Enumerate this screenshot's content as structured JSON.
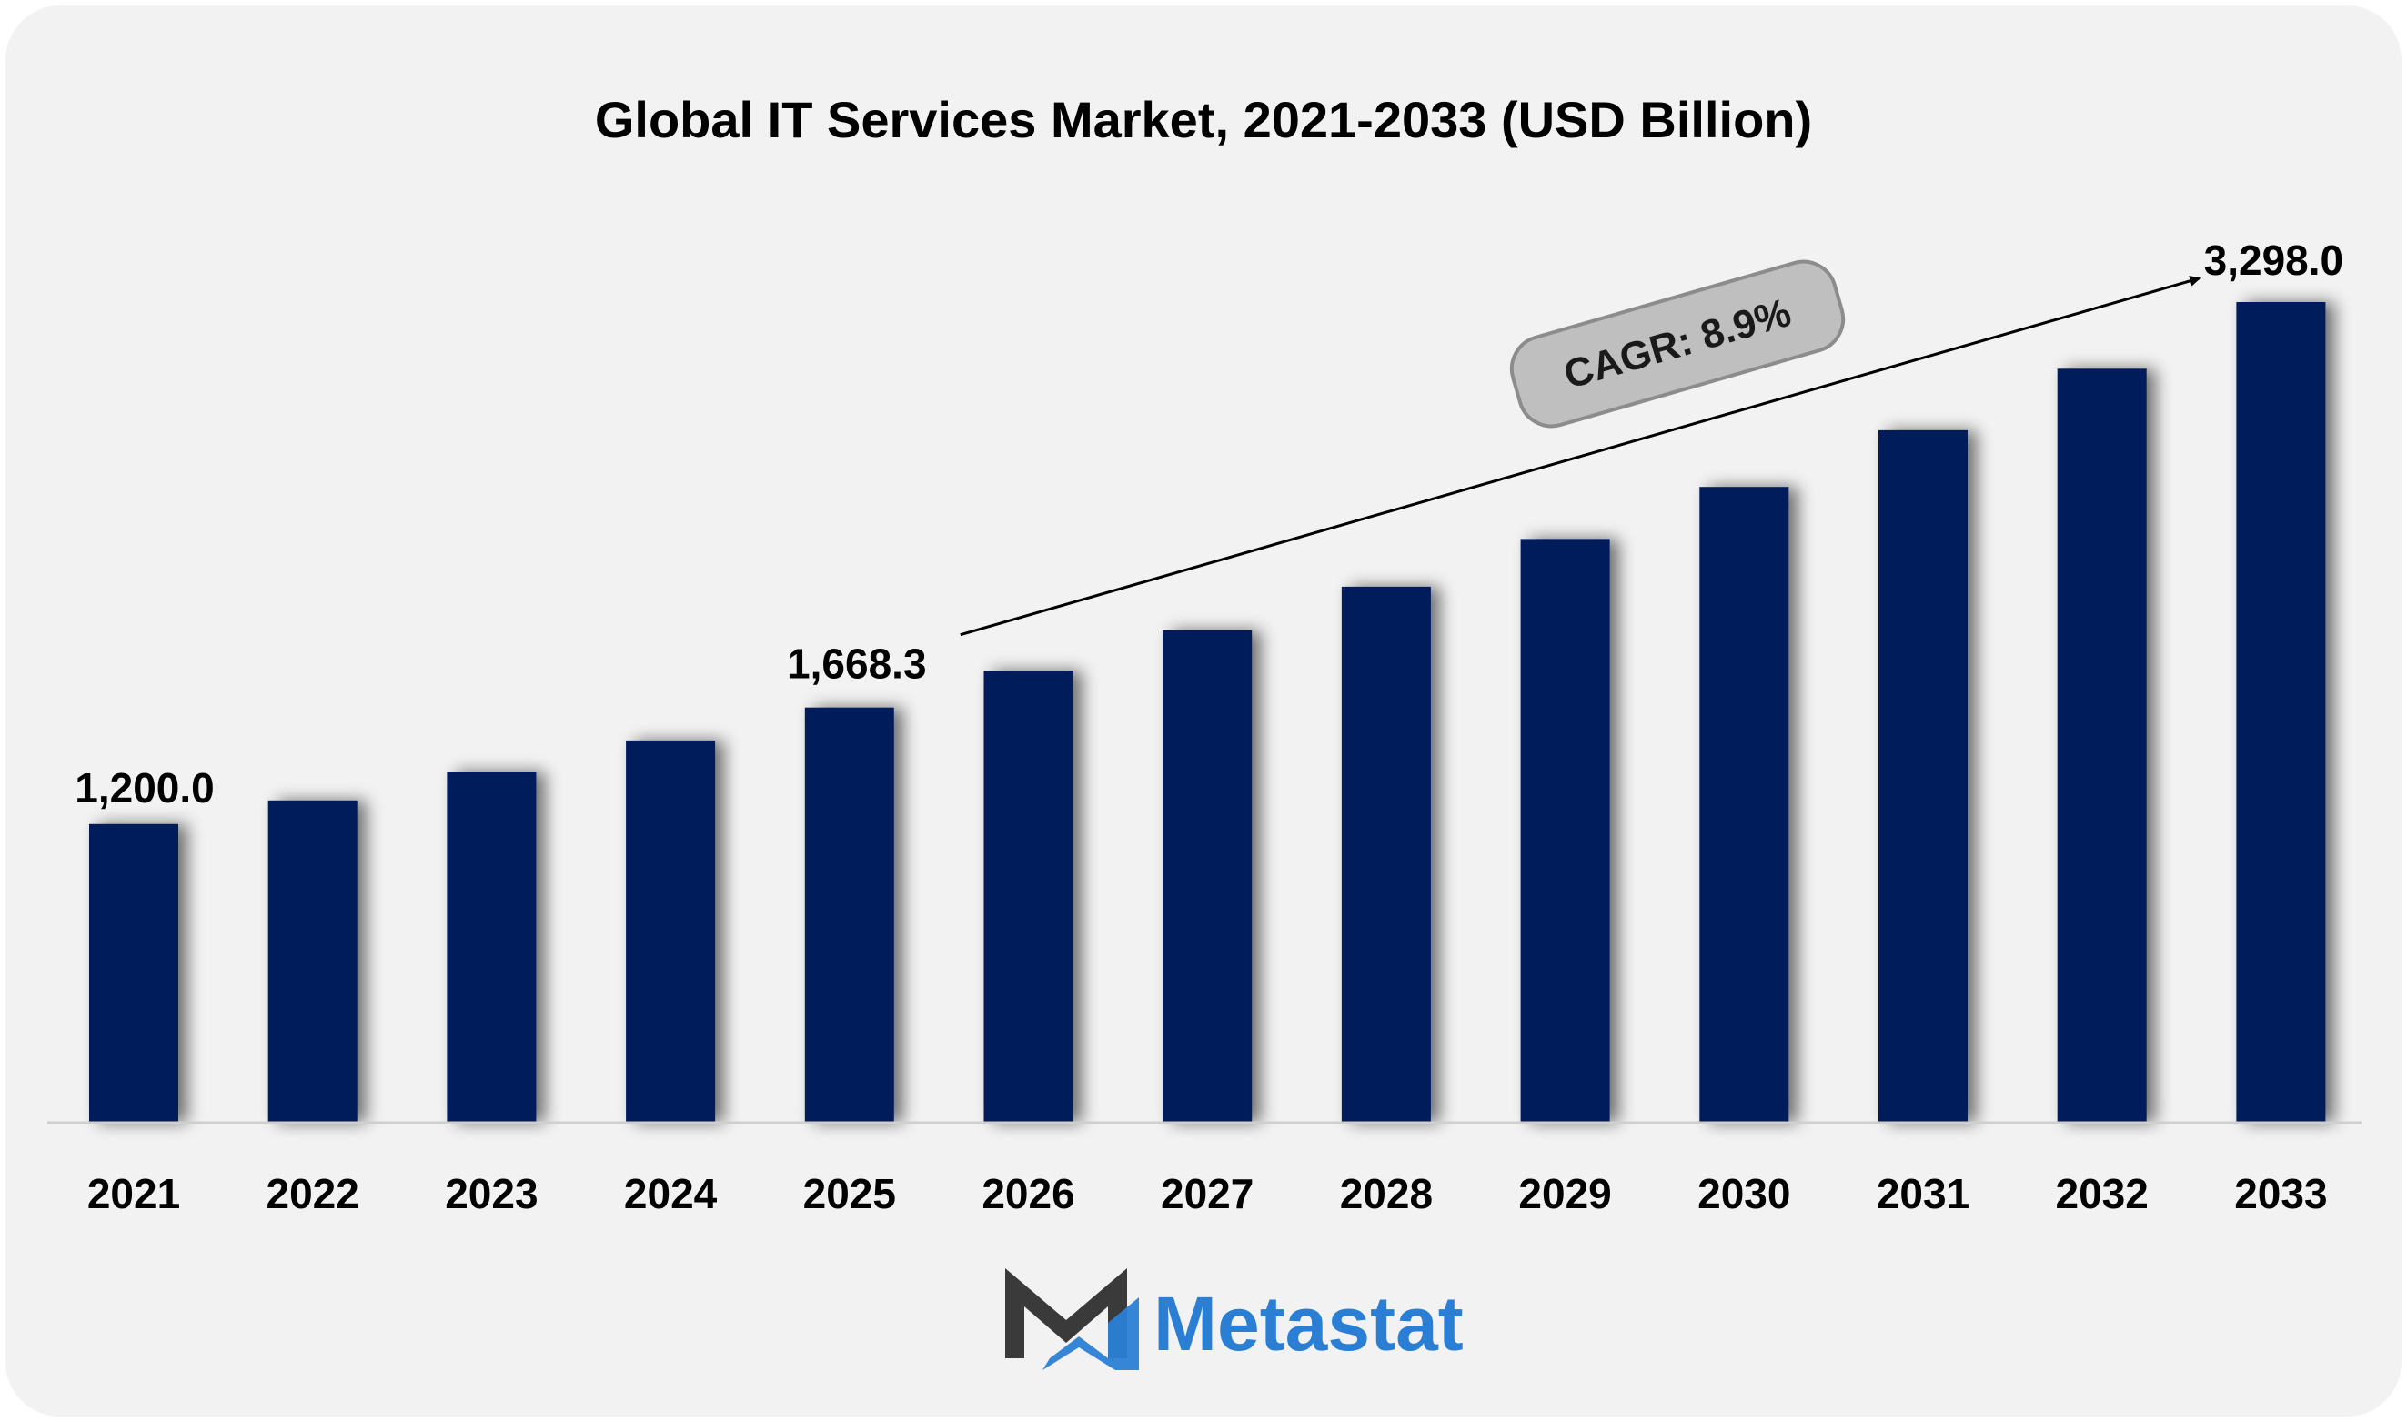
{
  "chart_data": {
    "type": "bar",
    "title": "Global IT Services Market, 2021-2033 (USD Billion)",
    "categories": [
      "2021",
      "2022",
      "2023",
      "2024",
      "2025",
      "2026",
      "2027",
      "2028",
      "2029",
      "2030",
      "2031",
      "2032",
      "2033"
    ],
    "values": [
      1200.0,
      1295,
      1411,
      1536,
      1668.3,
      1817,
      1978,
      2154,
      2346,
      2555,
      2783,
      3030,
      3298.0
    ],
    "data_labels": [
      {
        "category": "2021",
        "text": "1,200.0"
      },
      {
        "category": "2025",
        "text": "1,668.3"
      },
      {
        "category": "2033",
        "text": "3,298.0"
      }
    ],
    "annotation": {
      "text": "CAGR: 8.9%",
      "from": "2025",
      "to": "2033"
    },
    "ylim": [
      0,
      3298.0
    ],
    "grid": false,
    "legend": "none",
    "colors": {
      "bar": "#021d5a",
      "background": "#f2f2f2",
      "badge": "#bfbfbf"
    }
  },
  "brand": {
    "name": "Metastat",
    "colors": {
      "mark_dark": "#3a3a3a",
      "mark_blue": "#2a7fd4",
      "text": "#2a7fd4"
    },
    "icon": "metastat-m-logo-icon"
  }
}
